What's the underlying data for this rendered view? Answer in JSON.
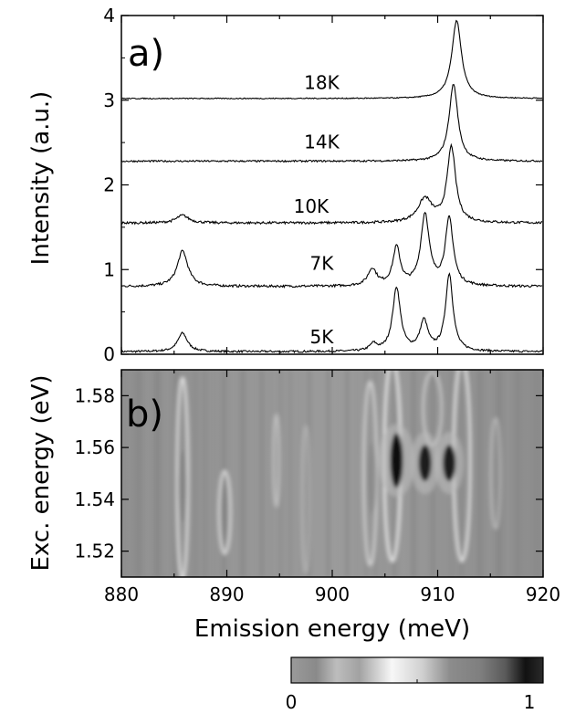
{
  "chart_data": [
    {
      "panel_label": "a)",
      "type": "line",
      "ylabel": "Intensity (a.u.)",
      "xlim": [
        880,
        920
      ],
      "ylim": [
        0,
        4
      ],
      "yticks": [
        0,
        1,
        2,
        3,
        4
      ],
      "grid": false,
      "series": [
        {
          "name": "5K",
          "label_x": 899,
          "label_y": 0.13,
          "peaks": [
            [
              885.8,
              0.22,
              0.55
            ],
            [
              903.9,
              0.08,
              0.4
            ],
            [
              906.1,
              0.75,
              0.45
            ],
            [
              908.7,
              0.35,
              0.45
            ],
            [
              911.1,
              0.91,
              0.42
            ]
          ],
          "offset": 0.03,
          "noise": 0.012
        },
        {
          "name": "7K",
          "label_x": 899,
          "label_y": 1.0,
          "peaks": [
            [
              885.8,
              0.42,
              0.6
            ],
            [
              903.8,
              0.2,
              0.5
            ],
            [
              906.1,
              0.45,
              0.42
            ],
            [
              908.8,
              0.84,
              0.48
            ],
            [
              911.1,
              0.79,
              0.45
            ]
          ],
          "offset": 0.8,
          "noise": 0.014
        },
        {
          "name": "10K",
          "label_x": 898,
          "label_y": 1.67,
          "peaks": [
            [
              885.8,
              0.09,
              0.7
            ],
            [
              908.8,
              0.28,
              0.8
            ],
            [
              911.3,
              0.89,
              0.48
            ]
          ],
          "offset": 1.55,
          "noise": 0.014
        },
        {
          "name": "14K",
          "label_x": 899,
          "label_y": 2.43,
          "peaks": [
            [
              911.5,
              0.91,
              0.5
            ]
          ],
          "offset": 2.28,
          "noise": 0.01
        },
        {
          "name": "18K",
          "label_x": 899,
          "label_y": 3.13,
          "peaks": [
            [
              911.8,
              0.92,
              0.55
            ]
          ],
          "offset": 3.02,
          "noise": 0.006
        }
      ]
    },
    {
      "panel_label": "b)",
      "type": "heatmap",
      "xlabel": "Emission energy (meV)",
      "ylabel": "Exc. energy (eV)",
      "xlim": [
        880,
        920
      ],
      "ylim": [
        1.51,
        1.59
      ],
      "xticks": [
        880,
        890,
        900,
        910,
        920
      ],
      "yticks": [
        1.52,
        1.54,
        1.56,
        1.58
      ],
      "colorbar": {
        "min_label": "0",
        "max_label": "1",
        "range": [
          0,
          1
        ]
      },
      "features": [
        {
          "x": 906.1,
          "y": 1.555,
          "value": 0.95
        },
        {
          "x": 908.8,
          "y": 1.554,
          "value": 0.85
        },
        {
          "x": 911.1,
          "y": 1.554,
          "value": 0.88
        },
        {
          "x": 885.8,
          "y": 1.545,
          "value": 0.25
        },
        {
          "x": 889.8,
          "y": 1.535,
          "value": 0.22
        },
        {
          "x": 903.8,
          "y": 1.548,
          "value": 0.2
        }
      ]
    }
  ]
}
